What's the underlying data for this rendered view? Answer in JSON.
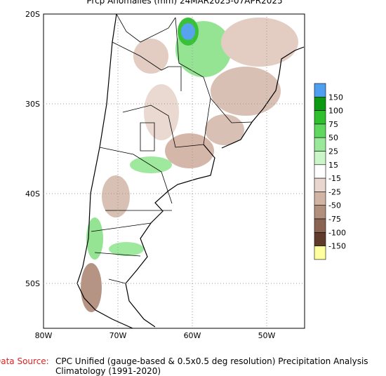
{
  "title": "Prcp Anomalies (mm) 24MAR2025-07APR2025",
  "lat_labels": [
    "20S",
    "30S",
    "40S",
    "50S"
  ],
  "lon_labels": [
    "80W",
    "70W",
    "60W",
    "50W"
  ],
  "legend": {
    "colors": [
      "#4f9ff0",
      "#0c9a12",
      "#2fbf2f",
      "#5fd85f",
      "#9ae89a",
      "#c9f5c9",
      "#ffffff",
      "#e9d7cf",
      "#d2b4a5",
      "#b28e7d",
      "#8a6452",
      "#603b2b",
      "#ffffa0"
    ],
    "labels": [
      "150",
      "100",
      "75",
      "50",
      "25",
      "15",
      "-15",
      "-25",
      "-50",
      "-75",
      "-100",
      "-150"
    ]
  },
  "footer": {
    "source_label": "Data Source:",
    "source_text": "CPC Unified (gauge-based & 0.5x0.5 deg resolution) Precipitation Analysis",
    "climatology": "Climatology (1991-2020)"
  }
}
